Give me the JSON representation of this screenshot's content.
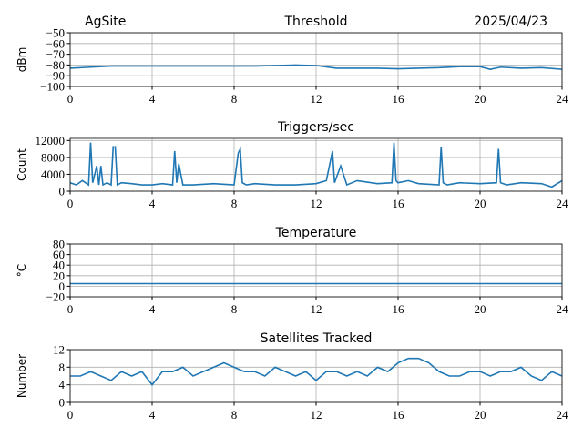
{
  "chart_data": [
    {
      "type": "line",
      "title": "Threshold",
      "annotations": [
        "AgSite",
        "2025/04/23"
      ],
      "ylabel": "dBm",
      "color": "#1f77b4",
      "grid": true,
      "xlim": [
        0,
        24
      ],
      "xticks": [
        0,
        4,
        8,
        12,
        16,
        20,
        24
      ],
      "ylim": [
        -100,
        -50
      ],
      "yticks": [
        {
          "value": -100,
          "label": "−100"
        },
        {
          "value": -90,
          "label": "−90"
        },
        {
          "value": -80,
          "label": "−80"
        },
        {
          "value": -70,
          "label": "−70"
        },
        {
          "value": -60,
          "label": "−60"
        },
        {
          "value": -50,
          "label": "−50"
        }
      ],
      "x": [
        0,
        1,
        2,
        3,
        4,
        5,
        6,
        7,
        8,
        9,
        10,
        11,
        12,
        13,
        14,
        15,
        16,
        17,
        18,
        19,
        20,
        20.5,
        21,
        22,
        23,
        24
      ],
      "values": [
        -83,
        -82,
        -81,
        -81,
        -81,
        -81,
        -81,
        -81,
        -81,
        -81,
        -80.5,
        -80,
        -80.5,
        -83,
        -83,
        -83,
        -83.5,
        -83,
        -82.5,
        -81.5,
        -81.5,
        -84,
        -82,
        -83,
        -82.5,
        -84
      ]
    },
    {
      "type": "line",
      "title": "Triggers/sec",
      "ylabel": "Count",
      "color": "#1f77b4",
      "grid": true,
      "xlim": [
        0,
        24
      ],
      "xticks": [
        0,
        4,
        8,
        12,
        16,
        20,
        24
      ],
      "ylim": [
        0,
        12500
      ],
      "yticks": [
        0,
        4000,
        8000,
        12000
      ],
      "x": [
        0,
        0.3,
        0.6,
        0.9,
        1.0,
        1.1,
        1.3,
        1.4,
        1.5,
        1.6,
        1.8,
        2.0,
        2.1,
        2.2,
        2.3,
        2.5,
        3,
        3.5,
        4,
        4.5,
        5.0,
        5.1,
        5.2,
        5.3,
        5.5,
        6,
        7,
        8,
        8.2,
        8.3,
        8.4,
        8.6,
        9,
        10,
        11,
        12,
        12.5,
        12.8,
        12.9,
        13.2,
        13.5,
        14,
        15,
        15.7,
        15.8,
        15.9,
        16.0,
        16.5,
        17,
        18.0,
        18.1,
        18.2,
        18.4,
        19,
        20,
        20.8,
        20.9,
        21.0,
        21.3,
        22,
        23,
        23.5,
        24
      ],
      "values": [
        2000,
        1500,
        2500,
        1500,
        11500,
        2000,
        6000,
        1500,
        6000,
        1500,
        2000,
        1500,
        10500,
        10500,
        1500,
        2000,
        1800,
        1500,
        1500,
        1800,
        1500,
        9500,
        2000,
        6500,
        1500,
        1500,
        1800,
        1500,
        9000,
        10000,
        2000,
        1500,
        1800,
        1500,
        1500,
        1800,
        2500,
        9500,
        2000,
        6000,
        1500,
        2500,
        1800,
        2000,
        11500,
        2500,
        2000,
        2500,
        1800,
        1500,
        10500,
        2000,
        1500,
        2000,
        1800,
        2000,
        10000,
        2000,
        1500,
        2000,
        1800,
        1000,
        2500
      ]
    },
    {
      "type": "line",
      "title": "Temperature",
      "ylabel": "°C",
      "color": "#1f77b4",
      "grid": true,
      "xlim": [
        0,
        24
      ],
      "xticks": [
        0,
        4,
        8,
        12,
        16,
        20,
        24
      ],
      "ylim": [
        -20,
        80
      ],
      "yticks": [
        {
          "value": -20,
          "label": "−20"
        },
        0,
        20,
        40,
        60,
        80
      ],
      "x": [
        0,
        24
      ],
      "values": [
        5,
        5
      ]
    },
    {
      "type": "line",
      "title": "Satellites Tracked",
      "ylabel": "Number",
      "color": "#1f77b4",
      "grid": true,
      "xlim": [
        0,
        24
      ],
      "xticks": [
        0,
        4,
        8,
        12,
        16,
        20,
        24
      ],
      "ylim": [
        0,
        12
      ],
      "yticks": [
        0,
        4,
        8,
        12
      ],
      "x": [
        0,
        0.5,
        1,
        1.5,
        2,
        2.5,
        3,
        3.5,
        4,
        4.5,
        5,
        5.5,
        6,
        6.5,
        7,
        7.5,
        8,
        8.5,
        9,
        9.5,
        10,
        10.5,
        11,
        11.5,
        12,
        12.5,
        13,
        13.5,
        14,
        14.5,
        15,
        15.5,
        16,
        16.5,
        17,
        17.5,
        18,
        18.5,
        19,
        19.5,
        20,
        20.5,
        21,
        21.5,
        22,
        22.5,
        23,
        23.5,
        24
      ],
      "values": [
        6,
        6,
        7,
        6,
        5,
        7,
        6,
        7,
        4,
        7,
        7,
        8,
        6,
        7,
        8,
        9,
        8,
        7,
        7,
        6,
        8,
        7,
        6,
        7,
        5,
        7,
        7,
        6,
        7,
        6,
        8,
        7,
        9,
        10,
        10,
        9,
        7,
        6,
        6,
        7,
        7,
        6,
        7,
        7,
        8,
        6,
        5,
        7,
        6
      ]
    }
  ]
}
